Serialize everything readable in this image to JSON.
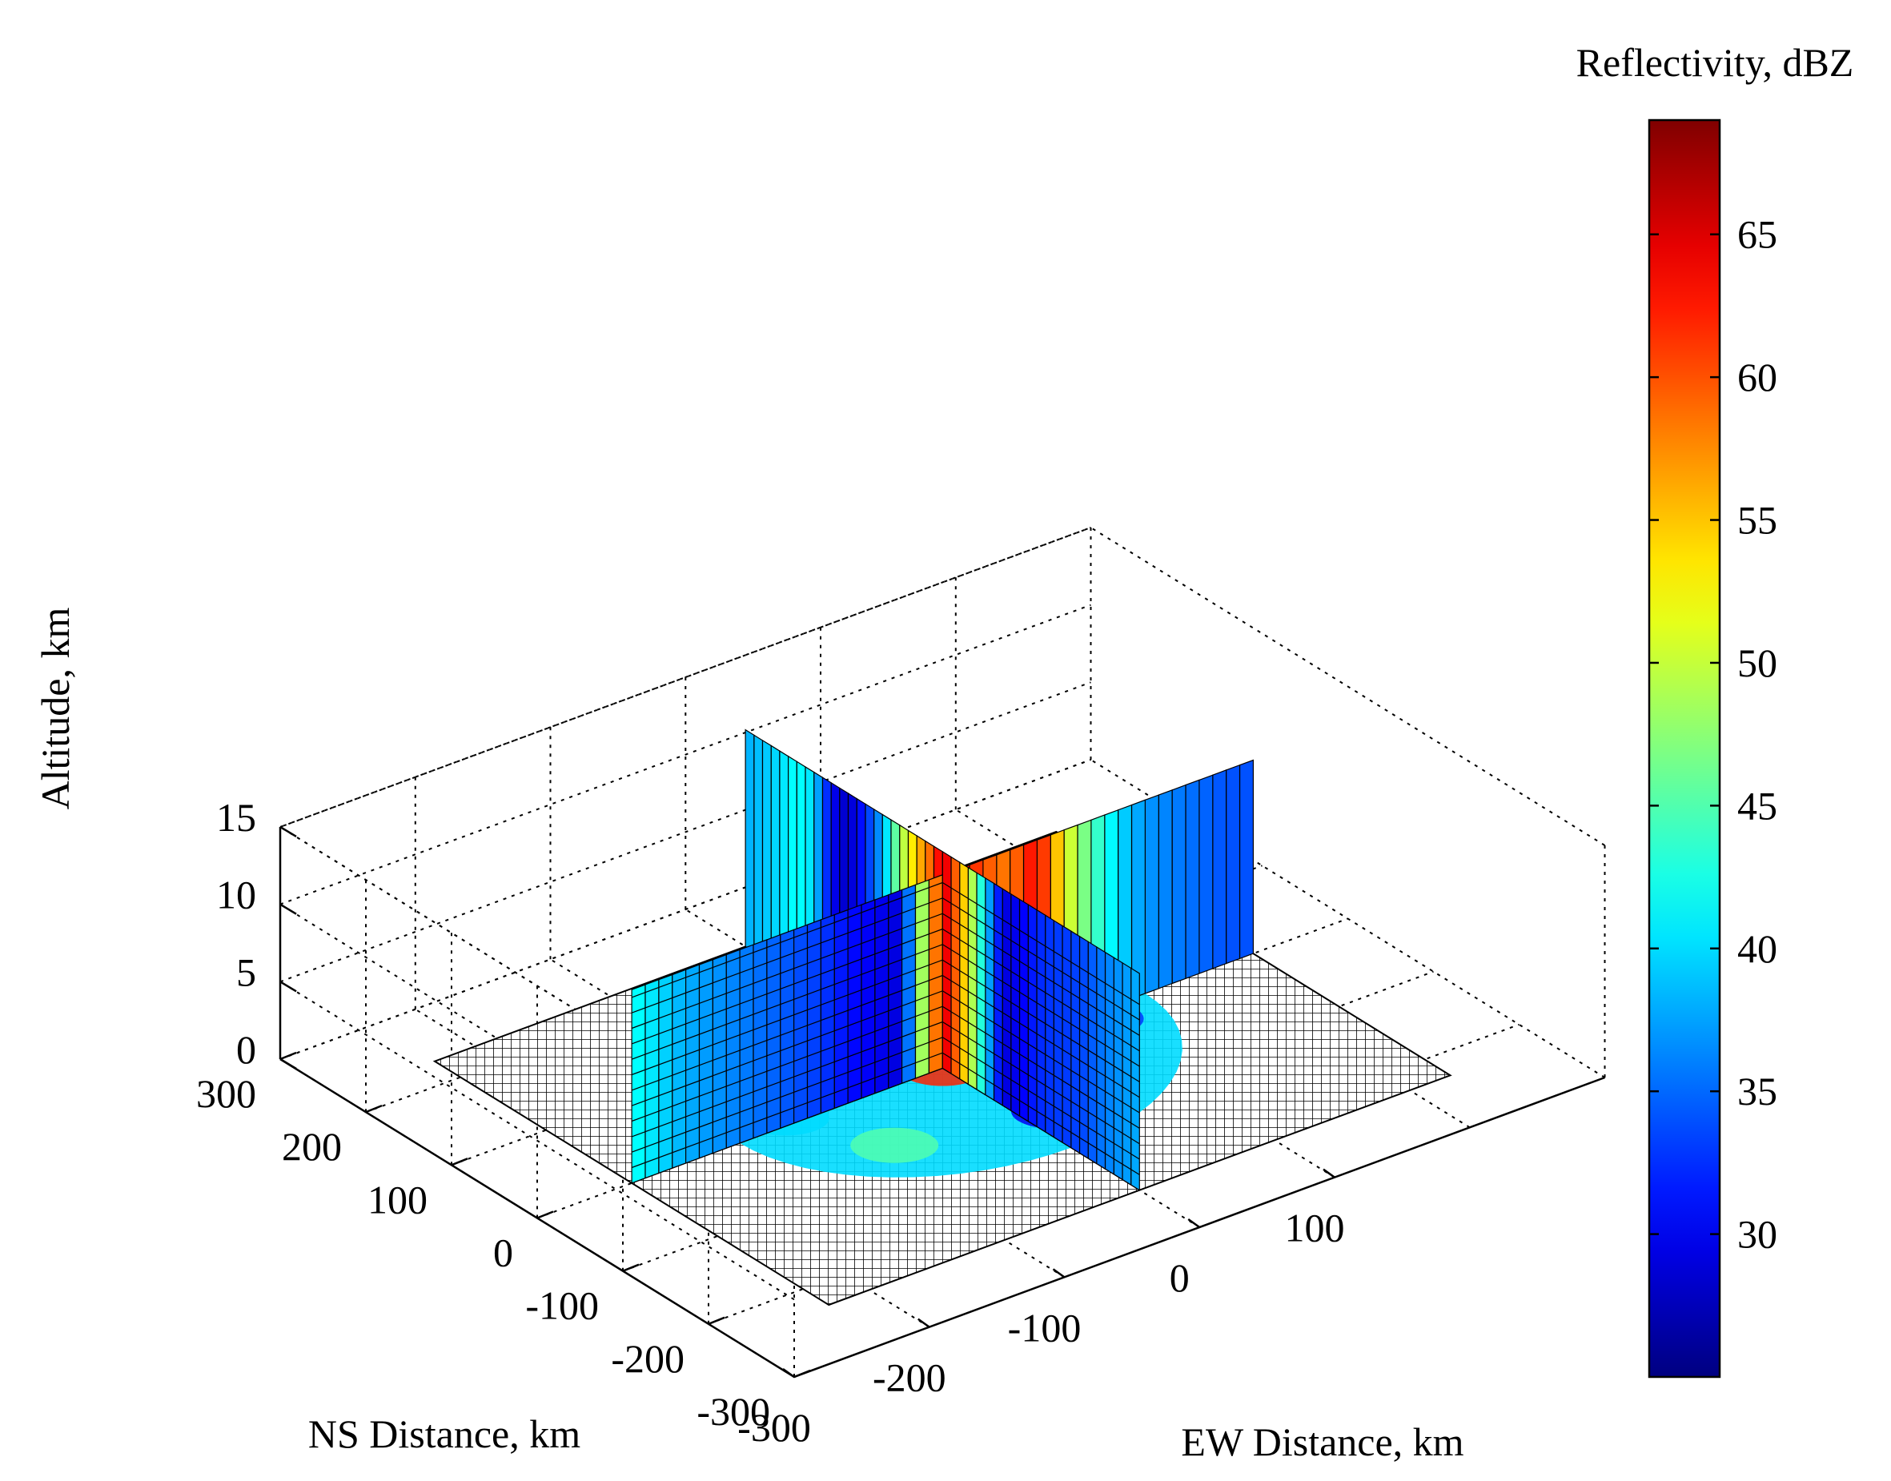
{
  "chart_data": {
    "type": "heatmap",
    "subtype": "3d-cross-section",
    "title": "",
    "xlabel": "EW Distance, km",
    "ylabel": "NS Distance, km",
    "zlabel": "Altitude, km",
    "xlim": [
      -300,
      300
    ],
    "ylim": [
      -300,
      300
    ],
    "zlim": [
      0,
      15
    ],
    "x_ticks": [
      "-300",
      "-200",
      "-100",
      "0",
      "100"
    ],
    "y_ticks": [
      "300",
      "200",
      "100",
      "0",
      "-100",
      "-200",
      "-300"
    ],
    "z_ticks": [
      "0",
      "5",
      "10",
      "15"
    ],
    "grid": true,
    "colorbar": {
      "label": "Reflectivity, dBZ",
      "range": [
        25,
        69
      ],
      "ticks": [
        "30",
        "35",
        "40",
        "45",
        "50",
        "55",
        "60",
        "65"
      ],
      "colormap": "jet",
      "position": "right"
    },
    "ew_slice_profile_dbz": {
      "ew_km": [
        -230,
        -210,
        -190,
        -170,
        -150,
        -130,
        -110,
        -90,
        -70,
        -50,
        -30,
        -10,
        0,
        10,
        30,
        50,
        70,
        90,
        110,
        130,
        150,
        170,
        190,
        210,
        230
      ],
      "values": [
        42,
        40,
        38,
        37,
        36,
        35,
        34,
        33,
        31,
        30,
        29,
        55,
        62,
        65,
        60,
        58,
        64,
        52,
        45,
        40,
        37,
        36,
        35,
        34,
        34
      ]
    },
    "ns_slice_profile_dbz": {
      "ns_km": [
        -230,
        -210,
        -190,
        -170,
        -150,
        -130,
        -110,
        -90,
        -70,
        -50,
        -30,
        -10,
        0,
        10,
        30,
        50,
        70,
        90,
        110,
        130,
        150,
        170,
        190,
        210,
        230
      ],
      "values": [
        38,
        37,
        36,
        34,
        33,
        33,
        32,
        30,
        29,
        40,
        52,
        62,
        66,
        60,
        55,
        48,
        38,
        32,
        28,
        30,
        40,
        42,
        40,
        39,
        38
      ]
    },
    "surface_echo_radius_km": 150
  }
}
